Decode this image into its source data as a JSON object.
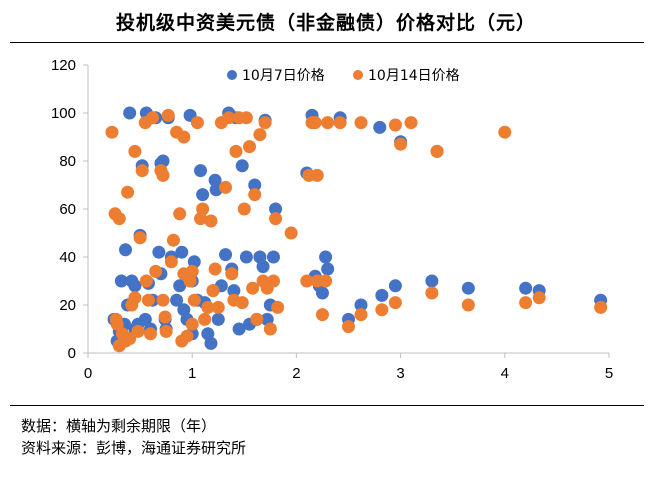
{
  "title": "投机级中资美元债（非金融债）价格对比（元）",
  "notes": {
    "line1": "数据：横轴为剩余期限（年）",
    "line2": "资料来源：彭博，海通证券研究所"
  },
  "colors": {
    "series1": "#4472C4",
    "series2": "#ED7D31",
    "axis": "#bfbfbf"
  },
  "chart_data": {
    "type": "scatter",
    "xlim": [
      0,
      5
    ],
    "ylim": [
      0,
      120
    ],
    "xticks": [
      "0",
      "1",
      "2",
      "3",
      "4",
      "5"
    ],
    "yticks": [
      "0",
      "20",
      "40",
      "60",
      "80",
      "100",
      "120"
    ],
    "legend_position": "top",
    "grid": false,
    "series": [
      {
        "name": "10月7日价格",
        "points": [
          [
            0.25,
            14
          ],
          [
            0.28,
            5
          ],
          [
            0.3,
            9
          ],
          [
            0.32,
            30
          ],
          [
            0.33,
            6
          ],
          [
            0.35,
            12
          ],
          [
            0.36,
            43
          ],
          [
            0.38,
            20
          ],
          [
            0.4,
            100
          ],
          [
            0.42,
            30
          ],
          [
            0.45,
            28
          ],
          [
            0.45,
            10
          ],
          [
            0.48,
            12
          ],
          [
            0.5,
            49
          ],
          [
            0.52,
            78
          ],
          [
            0.55,
            14
          ],
          [
            0.56,
            100
          ],
          [
            0.58,
            29
          ],
          [
            0.6,
            10
          ],
          [
            0.62,
            22
          ],
          [
            0.65,
            98
          ],
          [
            0.68,
            42
          ],
          [
            0.7,
            79
          ],
          [
            0.7,
            33
          ],
          [
            0.72,
            80
          ],
          [
            0.74,
            14
          ],
          [
            0.75,
            10
          ],
          [
            0.77,
            98
          ],
          [
            0.8,
            40
          ],
          [
            0.85,
            22
          ],
          [
            0.88,
            28
          ],
          [
            0.9,
            42
          ],
          [
            0.92,
            18
          ],
          [
            0.95,
            14
          ],
          [
            0.98,
            99
          ],
          [
            1.0,
            30
          ],
          [
            1.0,
            8
          ],
          [
            1.02,
            38
          ],
          [
            1.05,
            22
          ],
          [
            1.08,
            76
          ],
          [
            1.1,
            66
          ],
          [
            1.12,
            21
          ],
          [
            1.15,
            8
          ],
          [
            1.18,
            4
          ],
          [
            1.2,
            26
          ],
          [
            1.22,
            72
          ],
          [
            1.23,
            68
          ],
          [
            1.25,
            14
          ],
          [
            1.28,
            28
          ],
          [
            1.32,
            41
          ],
          [
            1.35,
            100
          ],
          [
            1.38,
            35
          ],
          [
            1.4,
            26
          ],
          [
            1.42,
            98
          ],
          [
            1.45,
            10
          ],
          [
            1.48,
            78
          ],
          [
            1.52,
            40
          ],
          [
            1.55,
            12
          ],
          [
            1.6,
            70
          ],
          [
            1.62,
            14
          ],
          [
            1.65,
            40
          ],
          [
            1.68,
            36
          ],
          [
            1.7,
            97
          ],
          [
            1.72,
            14
          ],
          [
            1.75,
            20
          ],
          [
            1.78,
            40
          ],
          [
            1.8,
            60
          ],
          [
            2.1,
            75
          ],
          [
            2.15,
            99
          ],
          [
            2.18,
            32
          ],
          [
            2.22,
            28
          ],
          [
            2.25,
            25
          ],
          [
            2.28,
            40
          ],
          [
            2.3,
            35
          ],
          [
            2.42,
            98
          ],
          [
            2.5,
            14
          ],
          [
            2.62,
            20
          ],
          [
            2.8,
            94
          ],
          [
            2.82,
            24
          ],
          [
            2.95,
            28
          ],
          [
            3.0,
            88
          ],
          [
            3.3,
            30
          ],
          [
            3.35,
            84
          ],
          [
            3.65,
            27
          ],
          [
            4.2,
            27
          ],
          [
            4.33,
            26
          ],
          [
            4.92,
            22
          ]
        ]
      },
      {
        "name": "10月14日价格",
        "points": [
          [
            0.23,
            92
          ],
          [
            0.26,
            58
          ],
          [
            0.28,
            12
          ],
          [
            0.3,
            3
          ],
          [
            0.3,
            56
          ],
          [
            0.33,
            8
          ],
          [
            0.36,
            5
          ],
          [
            0.38,
            67
          ],
          [
            0.4,
            6
          ],
          [
            0.42,
            20
          ],
          [
            0.45,
            84
          ],
          [
            0.45,
            23
          ],
          [
            0.48,
            9
          ],
          [
            0.5,
            48
          ],
          [
            0.52,
            76
          ],
          [
            0.55,
            96
          ],
          [
            0.56,
            30
          ],
          [
            0.58,
            22
          ],
          [
            0.6,
            8
          ],
          [
            0.62,
            98
          ],
          [
            0.65,
            34
          ],
          [
            0.7,
            76
          ],
          [
            0.72,
            74
          ],
          [
            0.72,
            22
          ],
          [
            0.74,
            15
          ],
          [
            0.75,
            9
          ],
          [
            0.77,
            99
          ],
          [
            0.8,
            38
          ],
          [
            0.82,
            47
          ],
          [
            0.85,
            92
          ],
          [
            0.88,
            58
          ],
          [
            0.9,
            5
          ],
          [
            0.92,
            90
          ],
          [
            0.92,
            33
          ],
          [
            0.95,
            7
          ],
          [
            0.98,
            30
          ],
          [
            1.0,
            12
          ],
          [
            1.0,
            34
          ],
          [
            1.02,
            22
          ],
          [
            1.05,
            96
          ],
          [
            1.08,
            56
          ],
          [
            1.1,
            60
          ],
          [
            1.12,
            14
          ],
          [
            1.15,
            19
          ],
          [
            1.18,
            55
          ],
          [
            1.2,
            26
          ],
          [
            1.22,
            35
          ],
          [
            1.25,
            19
          ],
          [
            1.28,
            96
          ],
          [
            1.32,
            69
          ],
          [
            1.35,
            98
          ],
          [
            1.38,
            33
          ],
          [
            1.4,
            22
          ],
          [
            1.42,
            84
          ],
          [
            1.45,
            98
          ],
          [
            1.48,
            21
          ],
          [
            1.5,
            60
          ],
          [
            1.52,
            98
          ],
          [
            1.55,
            86
          ],
          [
            1.58,
            27
          ],
          [
            1.6,
            66
          ],
          [
            1.62,
            14
          ],
          [
            1.65,
            91
          ],
          [
            1.68,
            30
          ],
          [
            1.7,
            96
          ],
          [
            1.72,
            27
          ],
          [
            1.75,
            10
          ],
          [
            1.78,
            30
          ],
          [
            1.8,
            56
          ],
          [
            1.82,
            19
          ],
          [
            1.95,
            50
          ],
          [
            2.1,
            30
          ],
          [
            2.12,
            74
          ],
          [
            2.15,
            96
          ],
          [
            2.18,
            96
          ],
          [
            2.2,
            30
          ],
          [
            2.25,
            16
          ],
          [
            2.28,
            30
          ],
          [
            2.3,
            96
          ],
          [
            2.42,
            96
          ],
          [
            2.5,
            11
          ],
          [
            2.62,
            96
          ],
          [
            2.62,
            16
          ],
          [
            2.82,
            18
          ],
          [
            2.95,
            95
          ],
          [
            2.95,
            21
          ],
          [
            3.0,
            87
          ],
          [
            3.1,
            96
          ],
          [
            3.3,
            25
          ],
          [
            3.35,
            84
          ],
          [
            3.65,
            20
          ],
          [
            4.0,
            92
          ],
          [
            4.2,
            21
          ],
          [
            4.33,
            23
          ],
          [
            4.92,
            19
          ],
          [
            2.2,
            74
          ],
          [
            0.27,
            14
          ]
        ]
      }
    ]
  }
}
